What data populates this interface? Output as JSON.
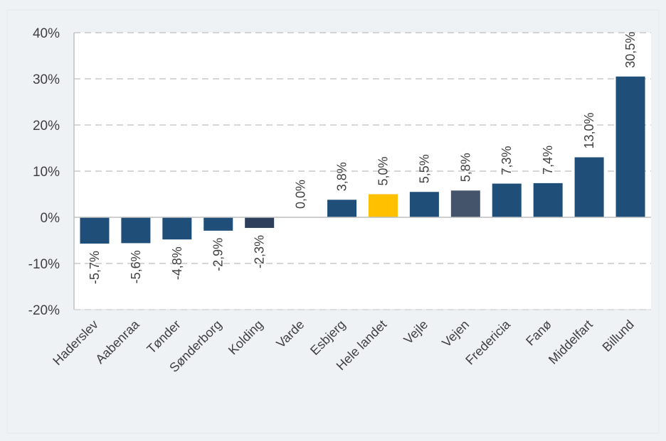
{
  "chart_data": {
    "type": "bar",
    "title": "",
    "xlabel": "",
    "ylabel": "",
    "categories": [
      "Haderslev",
      "Aabenraa",
      "Tønder",
      "Sønderborg",
      "Kolding",
      "Varde",
      "Esbjerg",
      "Hele landet",
      "Vejle",
      "Vejen",
      "Fredericia",
      "Fanø",
      "Middelfart",
      "Billund"
    ],
    "values": [
      -5.7,
      -5.6,
      -4.8,
      -2.9,
      -2.3,
      0.0,
      3.8,
      5.0,
      5.5,
      5.8,
      7.3,
      7.4,
      13.0,
      30.5
    ],
    "data_labels": [
      "-5,7%",
      "-5,6%",
      "-4,8%",
      "-2,9%",
      "-2,3%",
      "0,0%",
      "3,8%",
      "5,0%",
      "5,5%",
      "5,8%",
      "7,3%",
      "7,4%",
      "13,0%",
      "30,5%"
    ],
    "bar_colors": [
      "#1f4e79",
      "#1f4e79",
      "#1f4e79",
      "#1f4e79",
      "#2e3f5c",
      "#1f4e79",
      "#1f4e79",
      "#ffc000",
      "#1f4e79",
      "#44546a",
      "#1f4e79",
      "#1f4e79",
      "#1f4e79",
      "#1f4e79"
    ],
    "ylim": [
      -20,
      40
    ],
    "yticks": [
      -20,
      -10,
      0,
      10,
      20,
      30,
      40
    ],
    "ytick_labels": [
      "-20%",
      "-10%",
      "0%",
      "10%",
      "20%",
      "30%",
      "40%"
    ],
    "grid": true,
    "legend": "none"
  }
}
